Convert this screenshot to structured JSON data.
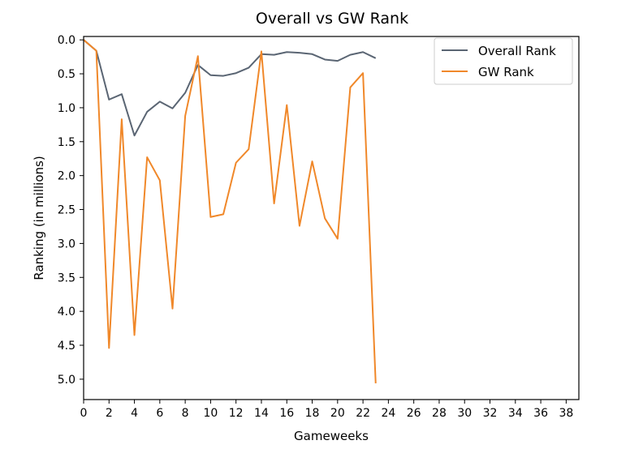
{
  "chart_data": {
    "type": "line",
    "title": "Overall vs GW Rank",
    "xlabel": "Gameweeks",
    "ylabel": "Ranking (in millions)",
    "xlim": [
      0,
      39
    ],
    "ylim": [
      5.3,
      -0.05
    ],
    "y_inverted": true,
    "xticks": [
      0,
      2,
      4,
      6,
      8,
      10,
      12,
      14,
      16,
      18,
      20,
      22,
      24,
      26,
      28,
      30,
      32,
      34,
      36,
      38
    ],
    "yticks": [
      0.0,
      0.5,
      1.0,
      1.5,
      2.0,
      2.5,
      3.0,
      3.5,
      4.0,
      4.5,
      5.0
    ],
    "ytick_labels": [
      "0.0",
      "0.5",
      "1.0",
      "1.5",
      "2.0",
      "2.5",
      "3.0",
      "3.5",
      "4.0",
      "4.5",
      "5.0"
    ],
    "grid": false,
    "legend": "top-right",
    "x": [
      0,
      1,
      2,
      3,
      4,
      5,
      6,
      7,
      8,
      9,
      10,
      11,
      12,
      13,
      14,
      15,
      16,
      17,
      18,
      19,
      20,
      21,
      22,
      23
    ],
    "series": [
      {
        "name": "Overall Rank",
        "color": "#5a6573",
        "values": [
          0.0,
          0.16,
          0.88,
          0.8,
          1.41,
          1.06,
          0.91,
          1.01,
          0.78,
          0.37,
          0.52,
          0.53,
          0.49,
          0.41,
          0.21,
          0.22,
          0.18,
          0.19,
          0.21,
          0.29,
          0.31,
          0.22,
          0.18,
          0.27
        ]
      },
      {
        "name": "GW Rank",
        "color": "#f0882a",
        "values": [
          0.0,
          0.16,
          4.54,
          1.17,
          4.35,
          1.73,
          2.07,
          3.96,
          1.12,
          0.24,
          2.61,
          2.57,
          1.81,
          1.61,
          0.17,
          2.41,
          0.96,
          2.74,
          1.79,
          2.63,
          2.93,
          0.7,
          0.49,
          5.06
        ]
      }
    ]
  }
}
